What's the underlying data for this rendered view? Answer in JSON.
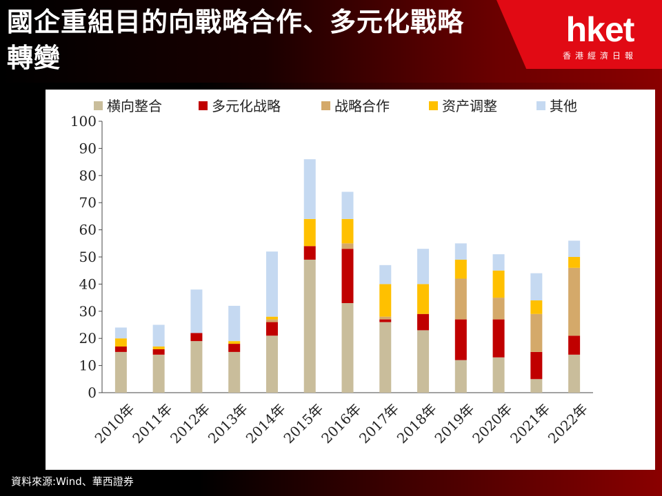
{
  "header": {
    "title": "國企重組目的向戰略合作、多元化戰略轉變",
    "logo": "hket",
    "logo_sub": "香港經濟日報"
  },
  "footer": {
    "source": "資料來源:Wind、華西證券"
  },
  "colors": {
    "horizontal": "#c9bd9b",
    "diversify": "#c00000",
    "strategic": "#d4a96a",
    "asset": "#ffc000",
    "other": "#c5d9f1"
  },
  "chart_data": {
    "type": "bar",
    "stacked": true,
    "categories": [
      "2010年",
      "2011年",
      "2012年",
      "2013年",
      "2014年",
      "2015年",
      "2016年",
      "2017年",
      "2018年",
      "2019年",
      "2020年",
      "2021年",
      "2022年"
    ],
    "series": [
      {
        "name": "横向整合",
        "color": "#c9bd9b",
        "values": [
          15,
          14,
          19,
          15,
          21,
          49,
          33,
          26,
          23,
          12,
          13,
          5,
          14
        ]
      },
      {
        "name": "多元化战略",
        "color": "#c00000",
        "values": [
          2,
          2,
          3,
          3,
          5,
          5,
          20,
          1,
          6,
          15,
          14,
          10,
          7
        ]
      },
      {
        "name": "战略合作",
        "color": "#d4a96a",
        "values": [
          0,
          0,
          0,
          0,
          1,
          0,
          2,
          1,
          0,
          15,
          8,
          14,
          25
        ]
      },
      {
        "name": "资产调整",
        "color": "#ffc000",
        "values": [
          3,
          1,
          0,
          1,
          1,
          10,
          9,
          12,
          11,
          7,
          10,
          5,
          4
        ]
      },
      {
        "name": "其他",
        "color": "#c5d9f1",
        "values": [
          4,
          8,
          16,
          13,
          24,
          22,
          10,
          7,
          13,
          6,
          6,
          10,
          6
        ]
      }
    ],
    "ylim": [
      0,
      100
    ],
    "yticks": [
      0,
      10,
      20,
      30,
      40,
      50,
      60,
      70,
      80,
      90,
      100
    ],
    "legend_position": "top",
    "grid": false
  }
}
